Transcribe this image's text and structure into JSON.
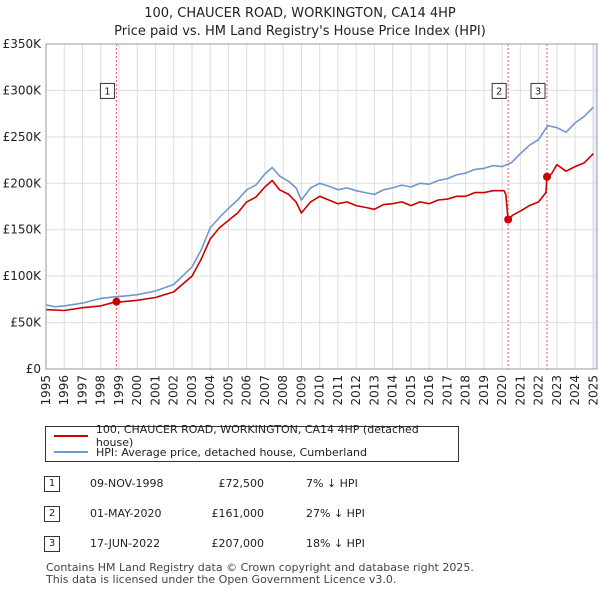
{
  "title_line1": "100, CHAUCER ROAD, WORKINGTON, CA14 4HP",
  "title_line2": "Price paid vs. HM Land Registry's House Price Index (HPI)",
  "colors": {
    "price": "#cc0000",
    "hpi": "#6f98cc",
    "grid": "#dddddd",
    "sale_vline": "#e06060",
    "shade": "#ebf0f8"
  },
  "chart_data": {
    "type": "line",
    "title": "Price paid vs. HM Land Registry's House Price Index (HPI)",
    "xlabel": "",
    "ylabel": "",
    "xlim": [
      1995,
      2025.2
    ],
    "ylim": [
      0,
      350000
    ],
    "x_ticks": [
      1995,
      1996,
      1997,
      1998,
      1999,
      2000,
      2001,
      2002,
      2003,
      2004,
      2005,
      2006,
      2007,
      2008,
      2009,
      2010,
      2011,
      2012,
      2013,
      2014,
      2015,
      2016,
      2017,
      2018,
      2019,
      2020,
      2021,
      2022,
      2023,
      2024,
      2025
    ],
    "y_ticks": [
      {
        "value": 0,
        "label": "£0"
      },
      {
        "value": 50000,
        "label": "£50K"
      },
      {
        "value": 100000,
        "label": "£100K"
      },
      {
        "value": 150000,
        "label": "£150K"
      },
      {
        "value": 200000,
        "label": "£200K"
      },
      {
        "value": 250000,
        "label": "£250K"
      },
      {
        "value": 300000,
        "label": "£300K"
      },
      {
        "value": 350000,
        "label": "£350K"
      }
    ],
    "grid": true,
    "series": [
      {
        "name": "100, CHAUCER ROAD, WORKINGTON, CA14 4HP (detached house)",
        "color": "#cc0000",
        "points": [
          [
            1995,
            64000
          ],
          [
            1996,
            63000
          ],
          [
            1997,
            66000
          ],
          [
            1998,
            68000
          ],
          [
            1998.86,
            72500
          ],
          [
            1999,
            72000
          ],
          [
            2000,
            74000
          ],
          [
            2001,
            77000
          ],
          [
            2002,
            83000
          ],
          [
            2003,
            100000
          ],
          [
            2003.5,
            118000
          ],
          [
            2004,
            140000
          ],
          [
            2004.5,
            152000
          ],
          [
            2005,
            160000
          ],
          [
            2005.5,
            168000
          ],
          [
            2006,
            180000
          ],
          [
            2006.5,
            185000
          ],
          [
            2007,
            196000
          ],
          [
            2007.4,
            203000
          ],
          [
            2007.8,
            193000
          ],
          [
            2008.3,
            188000
          ],
          [
            2008.7,
            180000
          ],
          [
            2009,
            168000
          ],
          [
            2009.5,
            180000
          ],
          [
            2010,
            186000
          ],
          [
            2010.5,
            182000
          ],
          [
            2011,
            178000
          ],
          [
            2011.5,
            180000
          ],
          [
            2012,
            176000
          ],
          [
            2012.5,
            174000
          ],
          [
            2013,
            172000
          ],
          [
            2013.5,
            177000
          ],
          [
            2014,
            178000
          ],
          [
            2014.5,
            180000
          ],
          [
            2015,
            176000
          ],
          [
            2015.5,
            180000
          ],
          [
            2016,
            178000
          ],
          [
            2016.5,
            182000
          ],
          [
            2017,
            183000
          ],
          [
            2017.5,
            186000
          ],
          [
            2018,
            186000
          ],
          [
            2018.5,
            190000
          ],
          [
            2019,
            190000
          ],
          [
            2019.5,
            192000
          ],
          [
            2020.1,
            192000
          ],
          [
            2020.2,
            188000
          ],
          [
            2020.33,
            161000
          ],
          [
            2020.6,
            166000
          ],
          [
            2021,
            170000
          ],
          [
            2021.5,
            176000
          ],
          [
            2022,
            180000
          ],
          [
            2022.4,
            190000
          ],
          [
            2022.46,
            207000
          ],
          [
            2022.7,
            210000
          ],
          [
            2023,
            220000
          ],
          [
            2023.5,
            213000
          ],
          [
            2024,
            218000
          ],
          [
            2024.5,
            222000
          ],
          [
            2025,
            232000
          ]
        ]
      },
      {
        "name": "HPI: Average price, detached house, Cumberland",
        "color": "#6f98cc",
        "points": [
          [
            1995,
            69000
          ],
          [
            1995.5,
            67000
          ],
          [
            1996,
            68000
          ],
          [
            1997,
            71000
          ],
          [
            1998,
            76000
          ],
          [
            1998.86,
            78000
          ],
          [
            1999,
            78000
          ],
          [
            2000,
            80000
          ],
          [
            2001,
            84000
          ],
          [
            2002,
            91000
          ],
          [
            2003,
            110000
          ],
          [
            2003.5,
            128000
          ],
          [
            2004,
            152000
          ],
          [
            2004.5,
            163000
          ],
          [
            2005,
            173000
          ],
          [
            2005.5,
            182000
          ],
          [
            2006,
            193000
          ],
          [
            2006.5,
            198000
          ],
          [
            2007,
            210000
          ],
          [
            2007.4,
            217000
          ],
          [
            2007.8,
            208000
          ],
          [
            2008.3,
            202000
          ],
          [
            2008.7,
            195000
          ],
          [
            2009,
            182000
          ],
          [
            2009.5,
            195000
          ],
          [
            2010,
            200000
          ],
          [
            2010.5,
            197000
          ],
          [
            2011,
            193000
          ],
          [
            2011.5,
            195000
          ],
          [
            2012,
            192000
          ],
          [
            2012.5,
            190000
          ],
          [
            2013,
            188000
          ],
          [
            2013.5,
            193000
          ],
          [
            2014,
            195000
          ],
          [
            2014.5,
            198000
          ],
          [
            2015,
            196000
          ],
          [
            2015.5,
            200000
          ],
          [
            2016,
            199000
          ],
          [
            2016.5,
            203000
          ],
          [
            2017,
            205000
          ],
          [
            2017.5,
            209000
          ],
          [
            2018,
            211000
          ],
          [
            2018.5,
            215000
          ],
          [
            2019,
            216000
          ],
          [
            2019.5,
            219000
          ],
          [
            2020,
            218000
          ],
          [
            2020.5,
            222000
          ],
          [
            2021,
            232000
          ],
          [
            2021.5,
            241000
          ],
          [
            2022,
            247000
          ],
          [
            2022.5,
            262000
          ],
          [
            2023,
            260000
          ],
          [
            2023.5,
            255000
          ],
          [
            2024,
            265000
          ],
          [
            2024.5,
            272000
          ],
          [
            2025,
            282000
          ]
        ]
      }
    ],
    "sales": [
      {
        "id": "1",
        "x": 1998.86,
        "price": 72500
      },
      {
        "id": "2",
        "x": 2020.33,
        "price": 161000
      },
      {
        "id": "3",
        "x": 2022.46,
        "price": 207000
      }
    ],
    "shaded_after": 2024.92,
    "marker_label_value": 300000
  },
  "legend": {
    "price_label": "100, CHAUCER ROAD, WORKINGTON, CA14 4HP (detached house)",
    "hpi_label": "HPI: Average price, detached house, Cumberland"
  },
  "sales_table": [
    {
      "num": "1",
      "date": "09-NOV-1998",
      "price": "£72,500",
      "hpi": "7% ↓ HPI"
    },
    {
      "num": "2",
      "date": "01-MAY-2020",
      "price": "£161,000",
      "hpi": "27% ↓ HPI"
    },
    {
      "num": "3",
      "date": "17-JUN-2022",
      "price": "£207,000",
      "hpi": "18% ↓ HPI"
    }
  ],
  "footer_line1": "Contains HM Land Registry data © Crown copyright and database right 2025.",
  "footer_line2": "This data is licensed under the Open Government Licence v3.0."
}
